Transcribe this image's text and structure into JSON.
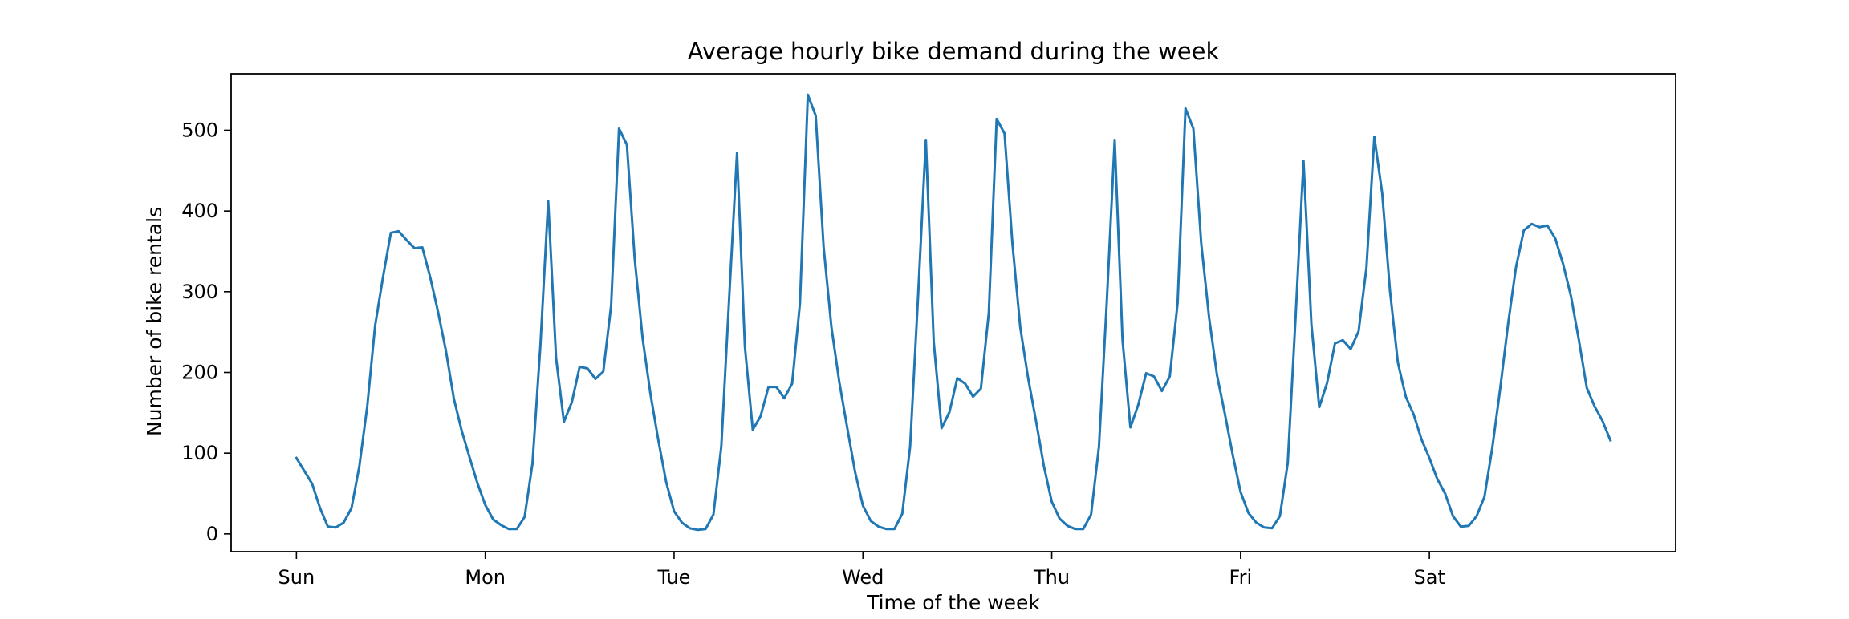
{
  "chart_data": {
    "type": "line",
    "title": "Average hourly bike demand during the week",
    "xlabel": "Time of the week",
    "ylabel": "Number of bike rentals",
    "xlim": [
      -8.3,
      175.3
    ],
    "ylim": [
      -22,
      570
    ],
    "grid": false,
    "x_ticks": [
      {
        "value": 0,
        "label": "Sun"
      },
      {
        "value": 24,
        "label": "Mon"
      },
      {
        "value": 48,
        "label": "Tue"
      },
      {
        "value": 72,
        "label": "Wed"
      },
      {
        "value": 96,
        "label": "Thu"
      },
      {
        "value": 120,
        "label": "Fri"
      },
      {
        "value": 144,
        "label": "Sat"
      }
    ],
    "y_ticks": [
      {
        "value": 0,
        "label": "0"
      },
      {
        "value": 100,
        "label": "100"
      },
      {
        "value": 200,
        "label": "200"
      },
      {
        "value": 300,
        "label": "300"
      },
      {
        "value": 400,
        "label": "400"
      },
      {
        "value": 500,
        "label": "500"
      }
    ],
    "series": [
      {
        "color": "#1f77b4",
        "x_start": 0,
        "x_step": 1,
        "values": [
          94,
          78,
          62,
          32,
          9,
          8,
          14,
          32,
          84,
          158,
          258,
          318,
          373,
          375,
          364,
          354,
          355,
          318,
          275,
          227,
          168,
          128,
          95,
          63,
          36,
          18,
          11,
          6,
          6,
          21,
          87,
          232,
          412,
          218,
          139,
          163,
          207,
          205,
          192,
          201,
          283,
          502,
          482,
          340,
          242,
          173,
          116,
          64,
          28,
          14,
          7,
          5,
          6,
          24,
          108,
          292,
          472,
          232,
          129,
          146,
          182,
          182,
          168,
          186,
          286,
          544,
          518,
          356,
          256,
          188,
          132,
          77,
          35,
          16,
          9,
          6,
          6,
          25,
          108,
          292,
          488,
          238,
          131,
          151,
          193,
          186,
          170,
          180,
          274,
          514,
          496,
          360,
          256,
          193,
          140,
          84,
          40,
          19,
          10,
          6,
          6,
          24,
          108,
          288,
          488,
          240,
          132,
          160,
          199,
          195,
          177,
          195,
          286,
          527,
          502,
          360,
          268,
          197,
          149,
          98,
          52,
          26,
          14,
          8,
          7,
          22,
          88,
          270,
          462,
          260,
          157,
          187,
          236,
          240,
          229,
          251,
          330,
          492,
          422,
          300,
          212,
          170,
          148,
          117,
          94,
          68,
          50,
          22,
          9,
          10,
          22,
          46,
          107,
          180,
          260,
          330,
          376,
          384,
          380,
          382,
          366,
          334,
          294,
          240,
          181,
          158,
          140,
          116
        ]
      }
    ]
  }
}
